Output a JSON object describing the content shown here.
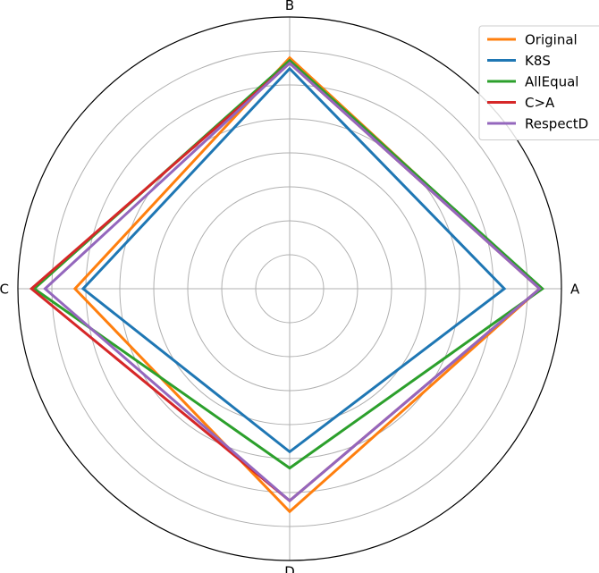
{
  "chart_data": {
    "type": "radar",
    "categories": [
      "A",
      "B",
      "C",
      "D"
    ],
    "rlim": [
      0,
      1
    ],
    "grid": true,
    "grid_rings": 8,
    "legend_position": "top-right",
    "series": [
      {
        "name": "Original",
        "color": "#ff7f0e",
        "values": [
          0.92,
          0.85,
          0.79,
          0.82
        ]
      },
      {
        "name": "K8S",
        "color": "#1f77b4",
        "values": [
          0.79,
          0.81,
          0.76,
          0.6
        ]
      },
      {
        "name": "AllEqual",
        "color": "#2ca02c",
        "values": [
          0.93,
          0.84,
          0.94,
          0.66
        ]
      },
      {
        "name": "C>A",
        "color": "#d62728",
        "values": [
          0.92,
          0.83,
          0.95,
          0.78
        ]
      },
      {
        "name": "RespectD",
        "color": "#9467bd",
        "values": [
          0.92,
          0.83,
          0.9,
          0.78
        ]
      }
    ]
  }
}
